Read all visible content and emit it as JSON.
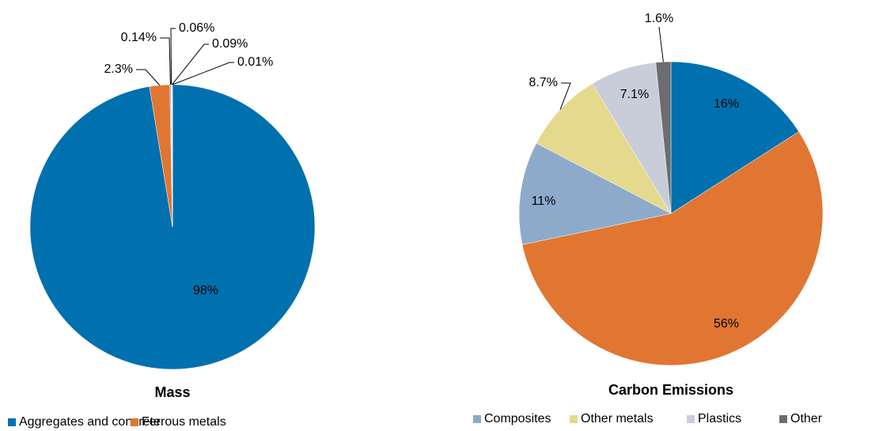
{
  "chart_data": [
    {
      "type": "pie",
      "title": "Mass",
      "values": [
        98,
        2.3,
        0.14,
        0.06,
        0.09,
        0.01
      ],
      "value_labels": [
        "98%",
        "2.3%",
        "0.14%",
        "0.06%",
        "0.09%",
        "0.01%"
      ]
    },
    {
      "type": "pie",
      "title": "Carbon Emissions",
      "values": [
        16,
        56,
        11,
        8.7,
        7.1,
        1.6
      ],
      "value_labels": [
        "16%",
        "56%",
        "11%",
        "8.7%",
        "7.1%",
        "1.6%"
      ]
    }
  ],
  "legend": {
    "categories": [
      "Aggregates and concrete",
      "Ferrous metals",
      "Composites",
      "Other metals",
      "Plastics",
      "Other"
    ],
    "colors": [
      "#0070ae",
      "#e07631",
      "#8eaacb",
      "#e4d98d",
      "#c9cdd9",
      "#6c6d70"
    ]
  }
}
